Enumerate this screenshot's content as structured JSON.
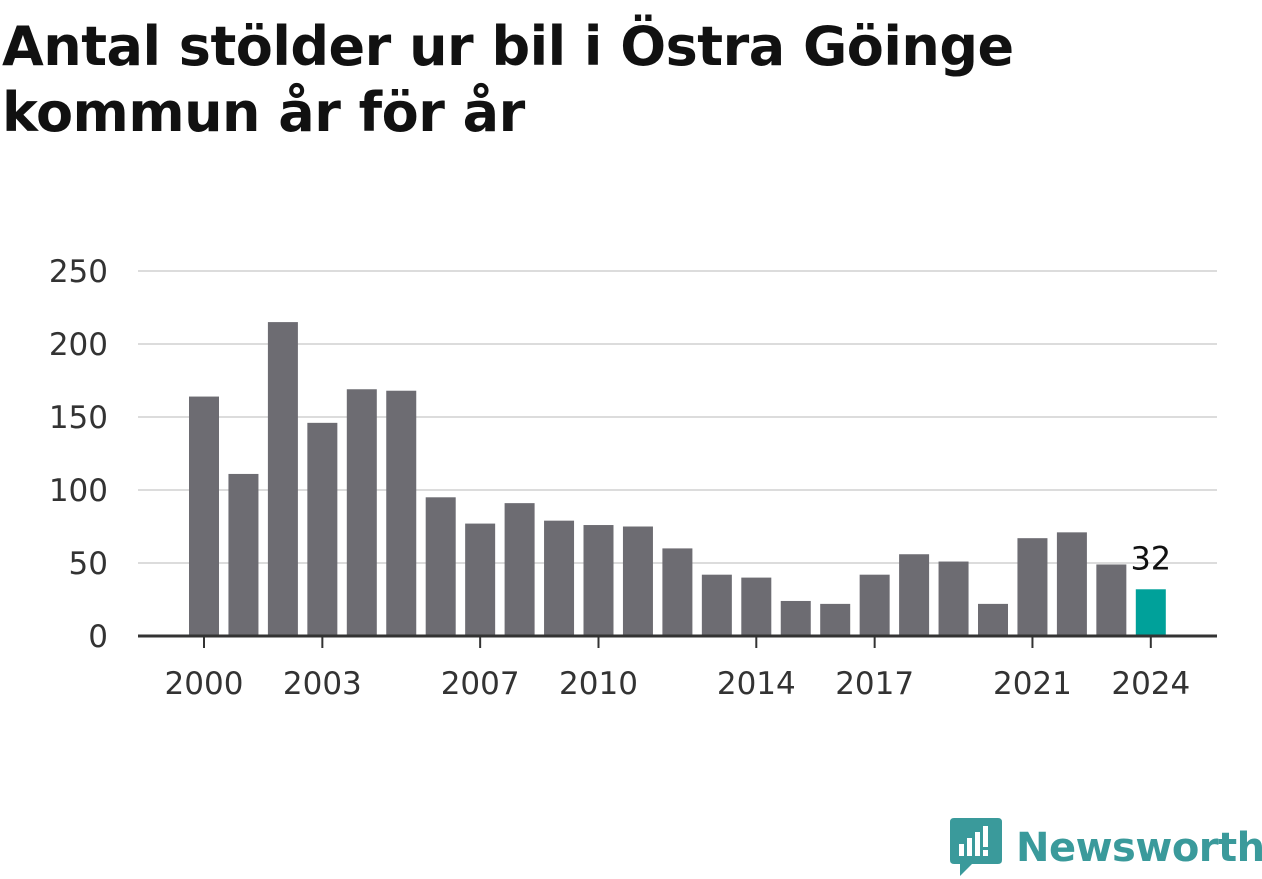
{
  "title": "Antal stölder ur bil i Östra Göinge kommun år för år",
  "brand": {
    "name": "Newsworthy",
    "color": "#3a9a9b",
    "icon": "newsworthy-logo-icon"
  },
  "colors": {
    "bar": "#6d6c72",
    "highlight": "#00a19a",
    "grid": "#dcdcdc",
    "axis": "#333333"
  },
  "chart_data": {
    "type": "bar",
    "categories": [
      "2000",
      "2001",
      "2002",
      "2003",
      "2004",
      "2005",
      "2006",
      "2007",
      "2008",
      "2009",
      "2010",
      "2011",
      "2012",
      "2013",
      "2014",
      "2015",
      "2016",
      "2017",
      "2018",
      "2019",
      "2020",
      "2021",
      "2022",
      "2023",
      "2024"
    ],
    "values": [
      164,
      111,
      215,
      146,
      169,
      168,
      95,
      77,
      91,
      79,
      76,
      75,
      60,
      42,
      40,
      24,
      22,
      42,
      56,
      51,
      22,
      67,
      71,
      49,
      32
    ],
    "x_tick_labels": [
      "2000",
      "2003",
      "2007",
      "2010",
      "2014",
      "2017",
      "2021",
      "2024"
    ],
    "y_ticks": [
      0,
      50,
      100,
      150,
      200,
      250
    ],
    "ylim": [
      0,
      250
    ],
    "highlight_category": "2024",
    "annotation": {
      "category": "2024",
      "text": "32"
    },
    "grid": true,
    "title": "Antal stölder ur bil i Östra Göinge kommun år för år",
    "xlabel": "",
    "ylabel": ""
  }
}
